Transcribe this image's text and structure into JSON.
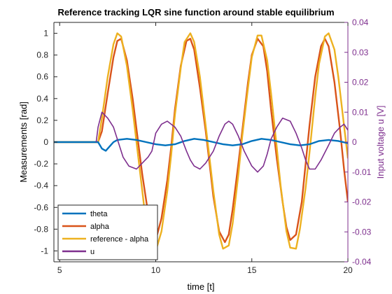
{
  "chart_data": {
    "type": "line",
    "title": "Reference tracking LQR sine function around stable equilibrium",
    "xlabel": "time [t]",
    "ylabel_left": "Measurements [rad]",
    "ylabel_right": "Input voltage u [V]",
    "xlim": [
      4.7,
      20
    ],
    "ylim_left": [
      -1.1,
      1.1
    ],
    "ylim_right": [
      -0.04,
      0.04
    ],
    "x_ticks": [
      "5",
      "10",
      "15",
      "20"
    ],
    "x_tick_values": [
      5,
      10,
      15,
      20
    ],
    "y_left_ticks": [
      "1",
      "0.8",
      "0.6",
      "0.4",
      "0.2",
      "0",
      "-0.2",
      "-0.4",
      "-0.6",
      "-0.8",
      "-1"
    ],
    "y_left_tick_values": [
      1,
      0.8,
      0.6,
      0.4,
      0.2,
      0,
      -0.2,
      -0.4,
      -0.6,
      -0.8,
      -1
    ],
    "y_right_ticks": [
      "0.04",
      "0.03",
      "0.02",
      "0.01",
      "0",
      "-0.01",
      "-0.02",
      "-0.03",
      "-0.04"
    ],
    "y_right_tick_values": [
      0.04,
      0.03,
      0.02,
      0.01,
      0,
      -0.01,
      -0.02,
      -0.03,
      -0.04
    ],
    "grid": false,
    "legend_position": "bottom-left",
    "series": [
      {
        "name": "theta",
        "axis": "left",
        "color": "#0072BD",
        "x": [
          4.7,
          7.0,
          7.2,
          7.4,
          7.6,
          7.8,
          8.0,
          8.5,
          9.0,
          9.5,
          10.0,
          10.5,
          11.0,
          11.5,
          12.0,
          12.5,
          13.0,
          13.5,
          14.0,
          14.5,
          15.0,
          15.5,
          16.0,
          16.5,
          17.0,
          17.5,
          18.0,
          18.5,
          19.0,
          19.5,
          20.0
        ],
        "y": [
          0,
          0,
          -0.06,
          -0.08,
          -0.04,
          0.0,
          0.02,
          0.03,
          0.02,
          0.0,
          -0.02,
          -0.03,
          -0.02,
          0.01,
          0.03,
          0.02,
          0.0,
          -0.02,
          -0.03,
          -0.02,
          0.01,
          0.03,
          0.02,
          0.0,
          -0.02,
          -0.03,
          -0.02,
          0.01,
          0.02,
          0.01,
          -0.01
        ]
      },
      {
        "name": "alpha",
        "axis": "left",
        "color": "#D95319",
        "x": [
          4.7,
          7.0,
          7.2,
          7.5,
          7.8,
          8.0,
          8.2,
          8.5,
          8.8,
          9.0,
          9.3,
          9.6,
          9.8,
          10.0,
          10.3,
          10.6,
          10.8,
          11.0,
          11.3,
          11.6,
          11.8,
          12.0,
          12.3,
          12.6,
          12.8,
          13.0,
          13.3,
          13.6,
          13.8,
          14.0,
          14.3,
          14.6,
          14.8,
          15.0,
          15.3,
          15.6,
          15.8,
          16.0,
          16.3,
          16.6,
          16.8,
          17.0,
          17.3,
          17.6,
          17.8,
          18.0,
          18.3,
          18.6,
          18.8,
          19.0,
          19.3,
          19.6,
          19.8,
          20.0
        ],
        "y": [
          0,
          0,
          0.1,
          0.45,
          0.78,
          0.93,
          0.95,
          0.75,
          0.4,
          0.12,
          -0.3,
          -0.65,
          -0.82,
          -0.9,
          -0.7,
          -0.35,
          -0.05,
          0.3,
          0.7,
          0.93,
          0.95,
          0.85,
          0.5,
          0.1,
          -0.2,
          -0.5,
          -0.82,
          -0.92,
          -0.85,
          -0.62,
          -0.2,
          0.25,
          0.55,
          0.8,
          0.95,
          0.88,
          0.65,
          0.3,
          -0.15,
          -0.55,
          -0.78,
          -0.9,
          -0.85,
          -0.55,
          -0.2,
          0.15,
          0.6,
          0.88,
          0.95,
          0.88,
          0.55,
          0.1,
          -0.25,
          -0.55
        ]
      },
      {
        "name": "reference - alpha",
        "axis": "left",
        "color": "#EDB120",
        "x": [
          4.7,
          7.0,
          7.2,
          7.5,
          7.8,
          8.0,
          8.2,
          8.5,
          8.8,
          9.0,
          9.3,
          9.5,
          9.8,
          10.0,
          10.3,
          10.6,
          10.8,
          11.0,
          11.3,
          11.5,
          11.8,
          12.0,
          12.3,
          12.5,
          12.8,
          13.0,
          13.3,
          13.5,
          13.8,
          14.0,
          14.3,
          14.5,
          14.8,
          15.0,
          15.3,
          15.5,
          15.8,
          16.0,
          16.3,
          16.5,
          16.8,
          17.0,
          17.3,
          17.5,
          17.8,
          18.0,
          18.3,
          18.5,
          18.8,
          19.0,
          19.3,
          19.5,
          19.8,
          20.0
        ],
        "y": [
          0,
          0,
          0.22,
          0.6,
          0.9,
          1.0,
          0.97,
          0.7,
          0.3,
          0.0,
          -0.45,
          -0.75,
          -0.97,
          -1.0,
          -0.82,
          -0.45,
          -0.12,
          0.25,
          0.68,
          0.92,
          1.0,
          0.92,
          0.6,
          0.3,
          -0.15,
          -0.45,
          -0.85,
          -0.98,
          -0.95,
          -0.75,
          -0.3,
          0.05,
          0.5,
          0.78,
          0.98,
          0.98,
          0.75,
          0.45,
          -0.05,
          -0.4,
          -0.82,
          -0.97,
          -0.98,
          -0.8,
          -0.42,
          -0.1,
          0.42,
          0.72,
          0.97,
          1.0,
          0.85,
          0.6,
          0.15,
          -0.15
        ]
      },
      {
        "name": "u",
        "axis": "right",
        "color": "#7E2F8E",
        "x": [
          6.9,
          7.0,
          7.2,
          7.5,
          7.8,
          8.0,
          8.3,
          8.6,
          9.0,
          9.3,
          9.6,
          9.8,
          10.0,
          10.3,
          10.6,
          11.0,
          11.3,
          11.6,
          11.8,
          12.0,
          12.3,
          12.6,
          13.0,
          13.3,
          13.6,
          13.8,
          14.0,
          14.3,
          14.6,
          15.0,
          15.3,
          15.6,
          15.8,
          16.0,
          16.3,
          16.6,
          17.0,
          17.3,
          17.6,
          17.8,
          18.0,
          18.3,
          18.6,
          19.0,
          19.3,
          19.6,
          19.8,
          20.0
        ],
        "y": [
          0,
          0.005,
          0.01,
          0.008,
          0.005,
          0.001,
          -0.005,
          -0.008,
          -0.009,
          -0.007,
          -0.005,
          -0.003,
          0.003,
          0.006,
          0.007,
          0.005,
          0.002,
          -0.003,
          -0.006,
          -0.008,
          -0.009,
          -0.007,
          -0.003,
          0.002,
          0.006,
          0.007,
          0.006,
          0.002,
          -0.003,
          -0.008,
          -0.01,
          -0.008,
          -0.004,
          0.001,
          0.005,
          0.008,
          0.007,
          0.003,
          -0.002,
          -0.006,
          -0.009,
          -0.009,
          -0.006,
          -0.001,
          0.003,
          0.005,
          0.006,
          0.004
        ]
      }
    ]
  }
}
